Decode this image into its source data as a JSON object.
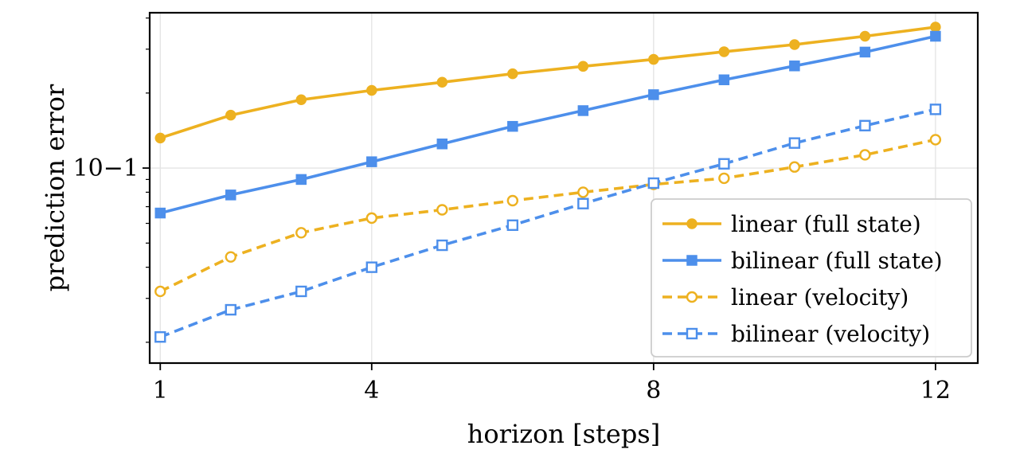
{
  "chart_data": {
    "type": "line",
    "xlabel": "horizon [steps]",
    "ylabel": "prediction error",
    "y_scale": "log",
    "xlim": [
      0.85,
      12.6
    ],
    "ylim": [
      0.0165,
      0.42
    ],
    "x_ticks": [
      1,
      4,
      8,
      12
    ],
    "x_tick_labels": [
      "1",
      "4",
      "8",
      "12"
    ],
    "y_ticks": [
      0.1
    ],
    "y_tick_labels": [
      "10−1"
    ],
    "grid": true,
    "legend_position": "lower-right",
    "x": [
      1,
      2,
      3,
      4,
      5,
      6,
      7,
      8,
      9,
      10,
      11,
      12
    ],
    "series": [
      {
        "name": "linear (full state)",
        "color": "#EDB120",
        "line_style": "solid",
        "marker": "filled-circle",
        "values": [
          0.132,
          0.163,
          0.188,
          0.205,
          0.221,
          0.239,
          0.256,
          0.273,
          0.293,
          0.313,
          0.338,
          0.368
        ]
      },
      {
        "name": "bilinear (full state)",
        "color": "#4D8FEB",
        "line_style": "solid",
        "marker": "filled-square",
        "values": [
          0.066,
          0.078,
          0.09,
          0.106,
          0.125,
          0.147,
          0.17,
          0.197,
          0.226,
          0.257,
          0.292,
          0.338
        ]
      },
      {
        "name": "linear (velocity)",
        "color": "#EDB120",
        "line_style": "dashed",
        "marker": "open-circle",
        "values": [
          0.032,
          0.044,
          0.055,
          0.063,
          0.068,
          0.074,
          0.08,
          0.086,
          0.091,
          0.101,
          0.113,
          0.13
        ]
      },
      {
        "name": "bilinear (velocity)",
        "color": "#4D8FEB",
        "line_style": "dashed",
        "marker": "open-square",
        "values": [
          0.021,
          0.027,
          0.032,
          0.04,
          0.049,
          0.059,
          0.072,
          0.087,
          0.104,
          0.126,
          0.148,
          0.172
        ]
      }
    ]
  }
}
